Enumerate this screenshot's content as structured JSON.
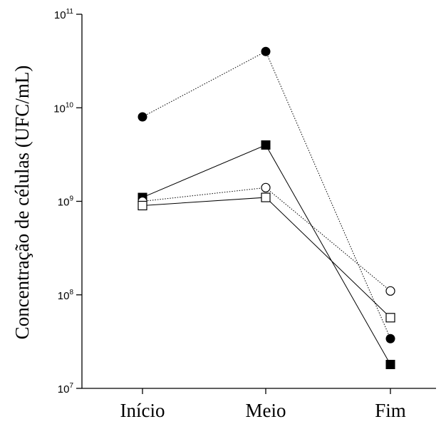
{
  "chart_data": {
    "type": "line",
    "xlabel": "",
    "ylabel": "Concentração de células (UFC/mL)",
    "yscale": "log",
    "ylim": [
      10000000,
      100000000000
    ],
    "yticks": [
      {
        "value": 10000000,
        "base": "10",
        "exp": "7"
      },
      {
        "value": 100000000,
        "base": "10",
        "exp": "8"
      },
      {
        "value": 1000000000,
        "base": "10",
        "exp": "9"
      },
      {
        "value": 10000000000,
        "base": "10",
        "exp": "10"
      },
      {
        "value": 100000000000,
        "base": "10",
        "exp": "11"
      }
    ],
    "categories": [
      "Início",
      "Meio",
      "Fim"
    ],
    "grid": false,
    "series": [
      {
        "marker": "circle-filled",
        "line": "dotted",
        "values": [
          8000000000,
          40000000000,
          34000000
        ]
      },
      {
        "marker": "square-filled",
        "line": "solid",
        "values": [
          1100000000,
          4000000000,
          18000000
        ]
      },
      {
        "marker": "circle-open",
        "line": "dotted",
        "values": [
          1000000000,
          1400000000,
          110000000
        ]
      },
      {
        "marker": "square-open",
        "line": "solid",
        "values": [
          900000000,
          1100000000,
          57000000
        ]
      }
    ]
  }
}
